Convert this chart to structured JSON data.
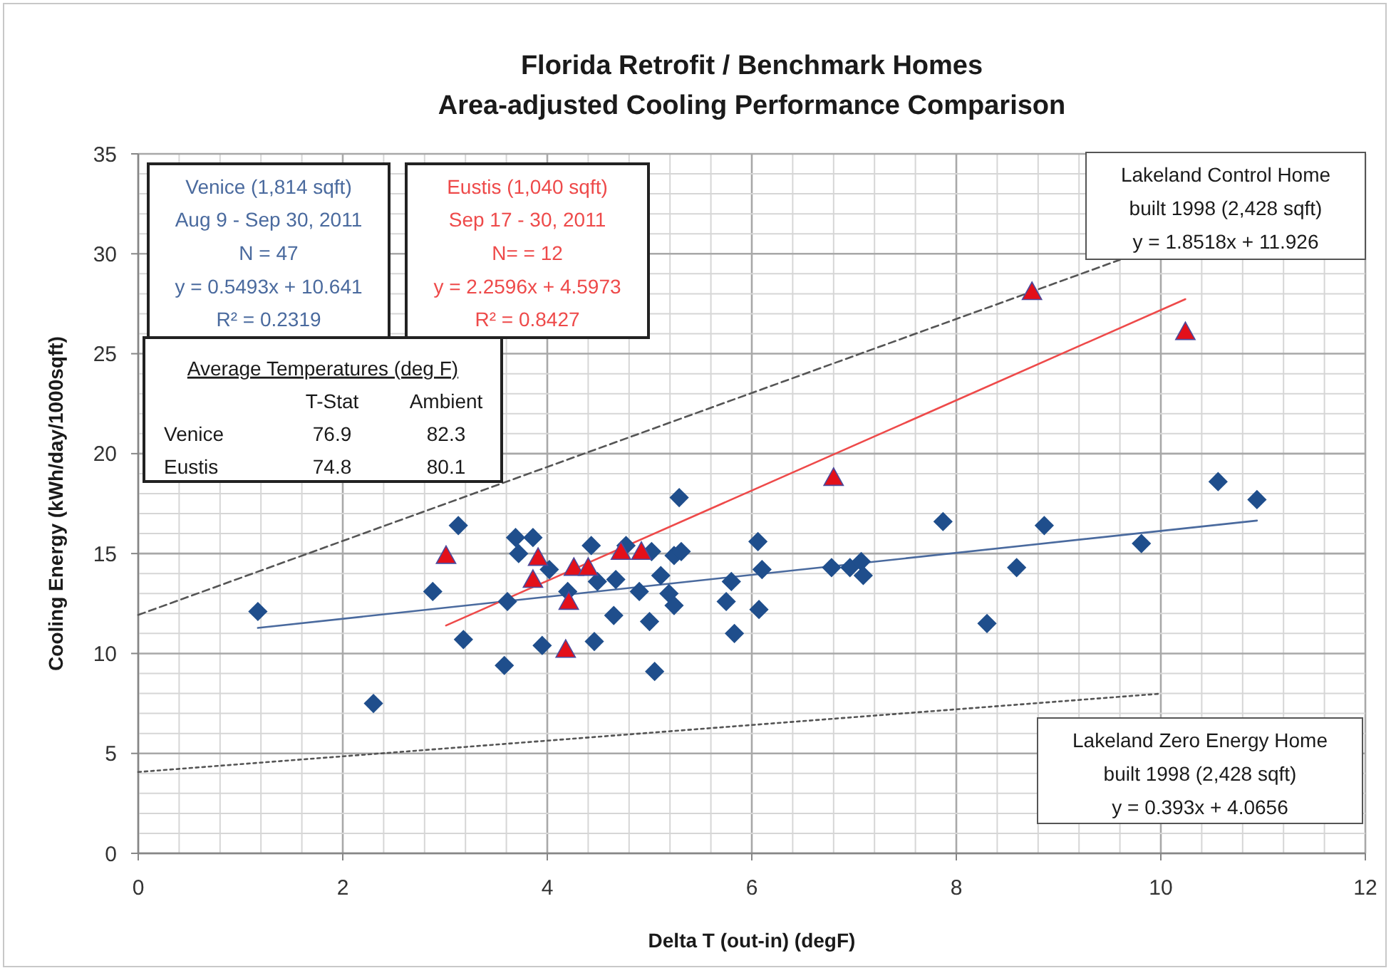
{
  "chart_data": {
    "type": "scatter",
    "title": "Florida Retrofit / Benchmark Homes\nArea-adjusted Cooling Performance Comparison",
    "xlabel": "Delta T (out-in) (degF)",
    "ylabel": "Cooling Energy (kWh/day/1000sqft)",
    "xlim": [
      0,
      12
    ],
    "ylim": [
      0,
      35
    ],
    "xticks": [
      0,
      {
        "value": 0.4,
        "label": null
      },
      {
        "value": 0.8,
        "label": null
      },
      {
        "value": 1.2,
        "label": null
      },
      {
        "value": 1.6,
        "label": null
      },
      2,
      {
        "value": 2.4,
        "label": null
      },
      {
        "value": 2.8,
        "label": null
      },
      {
        "value": 3.2,
        "label": null
      },
      {
        "value": 3.6,
        "label": null
      },
      4,
      {
        "value": 4.4,
        "label": null
      },
      {
        "value": 4.8,
        "label": null
      },
      {
        "value": 5.2,
        "label": null
      },
      {
        "value": 5.6,
        "label": null
      },
      6,
      {
        "value": 6.4,
        "label": null
      },
      {
        "value": 6.8,
        "label": null
      },
      {
        "value": 7.2,
        "label": null
      },
      {
        "value": 7.6,
        "label": null
      },
      8,
      {
        "value": 8.4,
        "label": null
      },
      {
        "value": 8.8,
        "label": null
      },
      {
        "value": 9.2,
        "label": null
      },
      {
        "value": 9.6,
        "label": null
      },
      10,
      {
        "value": 10.4,
        "label": null
      },
      {
        "value": 10.8,
        "label": null
      },
      {
        "value": 11.2,
        "label": null
      },
      {
        "value": 11.6,
        "label": null
      },
      12
    ],
    "yticks": [
      0,
      {
        "value": 1,
        "label": null
      },
      {
        "value": 2,
        "label": null
      },
      {
        "value": 3,
        "label": null
      },
      {
        "value": 4,
        "label": null
      },
      5,
      {
        "value": 6,
        "label": null
      },
      {
        "value": 7,
        "label": null
      },
      {
        "value": 8,
        "label": null
      },
      {
        "value": 9,
        "label": null
      },
      10,
      {
        "value": 11,
        "label": null
      },
      {
        "value": 12,
        "label": null
      },
      {
        "value": 13,
        "label": null
      },
      {
        "value": 14,
        "label": null
      },
      15,
      {
        "value": 16,
        "label": null
      },
      {
        "value": 17,
        "label": null
      },
      {
        "value": 18,
        "label": null
      },
      {
        "value": 19,
        "label": null
      },
      20,
      {
        "value": 21,
        "label": null
      },
      {
        "value": 22,
        "label": null
      },
      {
        "value": 23,
        "label": null
      },
      {
        "value": 24,
        "label": null
      },
      25,
      {
        "value": 26,
        "label": null
      },
      {
        "value": 27,
        "label": null
      },
      {
        "value": 28,
        "label": null
      },
      {
        "value": 29,
        "label": null
      },
      30,
      {
        "value": 31,
        "label": null
      },
      {
        "value": 32,
        "label": null
      },
      {
        "value": 33,
        "label": null
      },
      {
        "value": 34,
        "label": null
      },
      35
    ],
    "grid": true,
    "series": [
      {
        "marker": "diamond",
        "color": "#1f4e8c",
        "x": [
          1.17,
          2.3,
          2.88,
          3.13,
          3.18,
          3.58,
          3.61,
          3.69,
          3.72,
          3.86,
          3.95,
          4.02,
          4.2,
          4.43,
          4.46,
          4.49,
          4.65,
          4.67,
          4.77,
          4.9,
          5.0,
          5.02,
          5.05,
          5.11,
          5.19,
          5.24,
          5.24,
          5.31,
          5.29,
          5.75,
          5.8,
          5.83,
          6.06,
          6.07,
          6.1,
          6.78,
          6.96,
          7.07,
          7.09,
          7.87,
          8.3,
          8.59,
          8.86,
          9.81,
          10.56,
          10.94
        ],
        "values": [
          12.1,
          7.5,
          13.1,
          16.4,
          10.7,
          9.4,
          12.6,
          15.8,
          15.0,
          15.8,
          10.4,
          14.2,
          13.1,
          15.4,
          10.6,
          13.6,
          11.9,
          13.7,
          15.4,
          13.1,
          11.6,
          15.1,
          9.1,
          13.9,
          13.0,
          12.4,
          14.9,
          15.1,
          17.8,
          12.6,
          13.6,
          11.0,
          15.6,
          12.2,
          14.2,
          14.3,
          14.3,
          14.6,
          13.9,
          16.6,
          11.5,
          14.3,
          16.4,
          15.5,
          18.6,
          17.7
        ]
      },
      {
        "marker": "triangle",
        "color": "#e3101a",
        "x": [
          3.01,
          3.86,
          3.91,
          4.18,
          4.21,
          4.26,
          4.4,
          4.72,
          4.92,
          6.8,
          8.74,
          10.24
        ],
        "values": [
          14.9,
          13.7,
          14.8,
          10.2,
          12.6,
          14.3,
          14.3,
          15.1,
          15.1,
          18.8,
          28.1,
          26.1
        ]
      },
      {
        "type": "line",
        "line_style": "solid",
        "color": "#4a6a9e",
        "x": [
          1.17,
          10.94
        ],
        "values": [
          11.28,
          16.65
        ]
      },
      {
        "type": "line",
        "line_style": "solid",
        "color": "#ee4a4a",
        "x": [
          3.01,
          10.24
        ],
        "values": [
          11.4,
          27.73
        ]
      },
      {
        "type": "line",
        "line_style": "dashed",
        "color": "#555555",
        "x": [
          0,
          9.6
        ],
        "values": [
          11.93,
          29.7
        ]
      },
      {
        "type": "line",
        "line_style": "dotted",
        "color": "#555555",
        "x": [
          0,
          10
        ],
        "values": [
          4.07,
          7.99
        ]
      }
    ],
    "annotations": [
      "Venice (1,814 sqft)\nAug 9 - Sep 30, 2011\nN = 47\ny = 0.5493x + 10.641\nR² = 0.2319",
      "Eustis (1,040 sqft)\nSep 17 - 30, 2011\nN= = 12\ny = 2.2596x + 4.5973\nR² = 0.8427",
      "Average Temperatures (deg F)\n\tT-Stat\tAmbient\nVenice\t76.9\t82.3\nEustis\t74.8\t80.1",
      "Lakeland Control Home\nbuilt 1998 (2,428 sqft)\ny = 1.8518x + 11.926",
      "Lakeland Zero Energy Home\nbuilt 1998 (2,428 sqft)\ny = 0.393x + 4.0656"
    ]
  }
}
